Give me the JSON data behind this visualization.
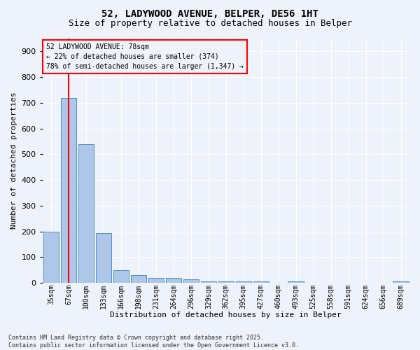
{
  "title_line1": "52, LADYWOOD AVENUE, BELPER, DE56 1HT",
  "title_line2": "Size of property relative to detached houses in Belper",
  "xlabel": "Distribution of detached houses by size in Belper",
  "ylabel": "Number of detached properties",
  "bar_labels": [
    "35sqm",
    "67sqm",
    "100sqm",
    "133sqm",
    "166sqm",
    "198sqm",
    "231sqm",
    "264sqm",
    "296sqm",
    "329sqm",
    "362sqm",
    "395sqm",
    "427sqm",
    "460sqm",
    "493sqm",
    "525sqm",
    "558sqm",
    "591sqm",
    "624sqm",
    "656sqm",
    "689sqm"
  ],
  "bar_values": [
    200,
    720,
    540,
    195,
    50,
    30,
    20,
    20,
    15,
    5,
    5,
    5,
    5,
    0,
    5,
    0,
    0,
    0,
    0,
    0,
    5
  ],
  "bar_color": "#aec6e8",
  "bar_edge_color": "#4a90c4",
  "annotation_box_text": "52 LADYWOOD AVENUE: 78sqm\n← 22% of detached houses are smaller (374)\n78% of semi-detached houses are larger (1,347) →",
  "redline_x": 1,
  "ylim_max": 950,
  "ytick_interval": 100,
  "footer_text": "Contains HM Land Registry data © Crown copyright and database right 2025.\nContains public sector information licensed under the Open Government Licence v3.0.",
  "bg_color": "#eef2fa",
  "grid_color": "#ffffff",
  "title1_fontsize": 10,
  "title2_fontsize": 9,
  "xlabel_fontsize": 8,
  "ylabel_fontsize": 8,
  "xtick_fontsize": 7,
  "ytick_fontsize": 8,
  "annot_fontsize": 7,
  "footer_fontsize": 6
}
